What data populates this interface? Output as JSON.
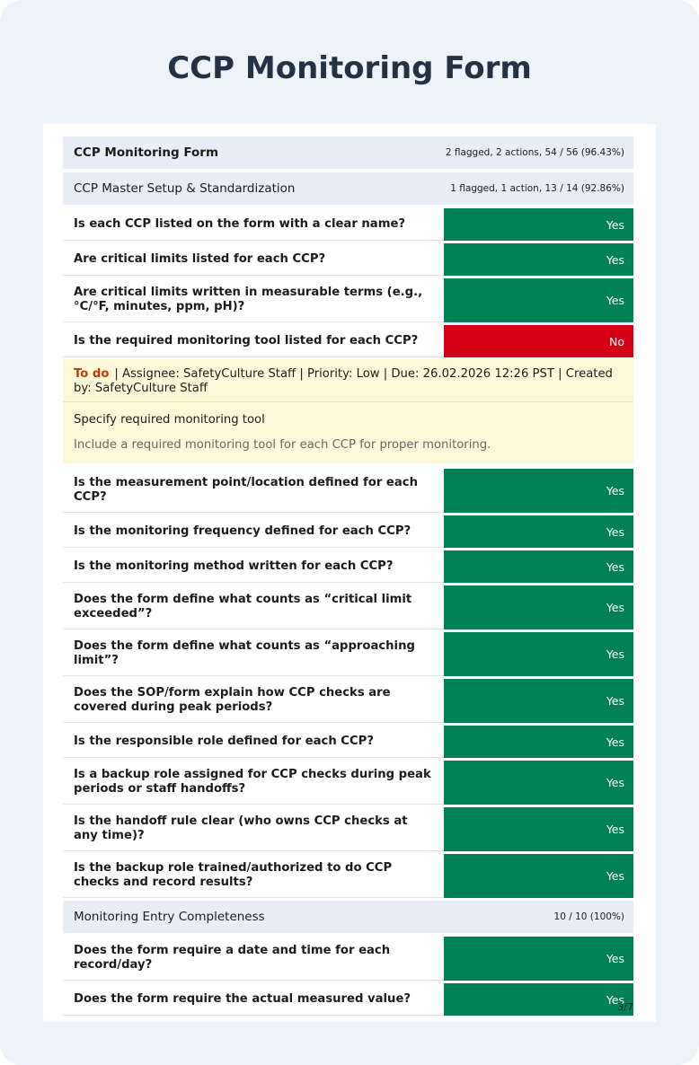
{
  "title": "CCP Monitoring Form",
  "report": {
    "title": "CCP Monitoring Form",
    "summary": "2 flagged, 2 actions, 54 / 56 (96.43%)"
  },
  "sections": [
    {
      "title": "CCP Master Setup & Standardization",
      "summary": "1 flagged, 1 action, 13 / 14 (92.86%)",
      "items": [
        {
          "question": "Is each CCP listed on the form with a clear name?",
          "answer": "Yes",
          "color": "#008055"
        },
        {
          "question": "Are critical limits listed for each CCP?",
          "answer": "Yes",
          "color": "#008055"
        },
        {
          "question": "Are critical limits written in measurable terms (e.g., °C/°F, minutes, ppm, pH)?",
          "answer": "Yes",
          "color": "#008055"
        },
        {
          "question": "Is the required monitoring tool listed for each CCP?",
          "answer": "No",
          "color": "#d50017",
          "action": {
            "status": "To do",
            "details": "| Assignee: SafetyCulture Staff | Priority: Low | Due: 26.02.2026 12:26 PST | Created by: SafetyCulture Staff",
            "title": "Specify required monitoring tool",
            "description": "Include a required monitoring tool for each CCP for proper monitoring."
          }
        },
        {
          "question": "Is the measurement point/location defined for each CCP?",
          "answer": "Yes",
          "color": "#008055"
        },
        {
          "question": "Is the monitoring frequency defined for each CCP?",
          "answer": "Yes",
          "color": "#008055"
        },
        {
          "question": "Is the monitoring method written for each CCP?",
          "answer": "Yes",
          "color": "#008055"
        },
        {
          "question": "Does the form define what counts as “critical limit exceeded”?",
          "answer": "Yes",
          "color": "#008055"
        },
        {
          "question": "Does the form define what counts as “approaching limit”?",
          "answer": "Yes",
          "color": "#008055"
        },
        {
          "question": "Does the SOP/form explain how CCP checks are covered during peak periods?",
          "answer": "Yes",
          "color": "#008055"
        },
        {
          "question": "Is the responsible role defined for each CCP?",
          "answer": "Yes",
          "color": "#008055"
        },
        {
          "question": "Is a backup role assigned for CCP checks during peak periods or staff handoffs?",
          "answer": "Yes",
          "color": "#008055"
        },
        {
          "question": "Is the handoff rule clear (who owns CCP checks at any time)?",
          "answer": "Yes",
          "color": "#008055"
        },
        {
          "question": "Is the backup role trained/authorized to do CCP checks and record results?",
          "answer": "Yes",
          "color": "#008055"
        }
      ]
    },
    {
      "title": "Monitoring Entry Completeness",
      "summary": "10 / 10 (100%)",
      "items": [
        {
          "question": "Does the form require a date and time for each record/day?",
          "answer": "Yes",
          "color": "#008055"
        },
        {
          "question": "Does the form require the actual measured value?",
          "answer": "Yes",
          "color": "#008055"
        }
      ]
    }
  ],
  "page_number": "3/7"
}
